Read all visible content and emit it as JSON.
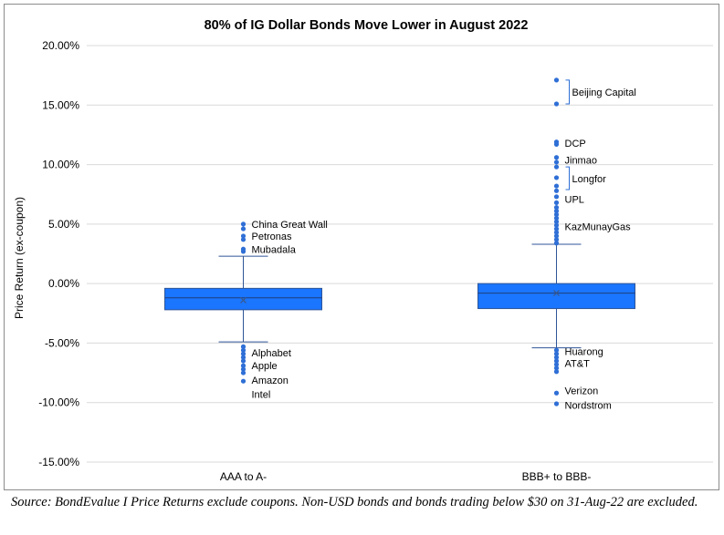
{
  "chart_data": {
    "type": "box",
    "title": "80% of IG Dollar Bonds Move Lower in August 2022",
    "ylabel": "Price Return (ex-coupon)",
    "xlabel": "",
    "ylim": [
      -15,
      20
    ],
    "yticks": [
      "-15.00%",
      "-10.00%",
      "-5.00%",
      "0.00%",
      "5.00%",
      "10.00%",
      "15.00%",
      "20.00%"
    ],
    "ytick_values": [
      -15,
      -10,
      -5,
      0,
      5,
      10,
      15,
      20
    ],
    "grid": true,
    "box_color": "#1a75ff",
    "outlier_color": "#2f6fd6",
    "categories": [
      "AAA to A-",
      "BBB+ to BBB-"
    ],
    "boxes": [
      {
        "category": "AAA to A-",
        "q1": -2.2,
        "median": -1.2,
        "q3": -0.4,
        "mean": -1.4,
        "whisker_low": -4.9,
        "whisker_high": 2.3,
        "outliers": [
          5.0,
          4.6,
          4.0,
          3.7,
          2.9,
          2.7,
          -5.3,
          -5.6,
          -5.9,
          -6.2,
          -6.5,
          -6.9,
          -7.2,
          -7.5,
          -8.2
        ],
        "annotations": [
          {
            "label": "China Great Wall",
            "value": 5.0
          },
          {
            "label": "Petronas",
            "value": 4.0
          },
          {
            "label": "Mubadala",
            "value": 2.9
          },
          {
            "label": "Alphabet",
            "value": -5.8
          },
          {
            "label": "Apple",
            "value": -6.9
          },
          {
            "label": "Amazon",
            "value": -8.1
          },
          {
            "label": "Intel",
            "value": -9.3
          }
        ]
      },
      {
        "category": "BBB+ to BBB-",
        "q1": -2.1,
        "median": -0.8,
        "q3": 0.0,
        "mean": -0.8,
        "whisker_low": -5.4,
        "whisker_high": 3.3,
        "outliers": [
          17.1,
          15.1,
          11.9,
          11.7,
          10.6,
          10.2,
          9.8,
          8.9,
          8.2,
          7.8,
          7.3,
          6.8,
          6.4,
          6.1,
          5.8,
          5.5,
          5.2,
          4.9,
          4.6,
          4.3,
          4.0,
          3.7,
          3.4,
          -5.6,
          -5.9,
          -6.2,
          -6.5,
          -6.8,
          -7.1,
          -7.4,
          -9.2,
          -10.1
        ],
        "annotations": [
          {
            "label": "Beijing Capital",
            "value": 16.1,
            "bracket": [
              17.1,
              15.1
            ]
          },
          {
            "label": "DCP",
            "value": 11.8
          },
          {
            "label": "Jinmao",
            "value": 10.4
          },
          {
            "label": "Longfor",
            "value": 8.8,
            "bracket": [
              9.8,
              7.9
            ]
          },
          {
            "label": "UPL",
            "value": 7.1
          },
          {
            "label": "KazMunayGas",
            "value": 4.8
          },
          {
            "label": "Huarong",
            "value": -5.7
          },
          {
            "label": "AT&T",
            "value": -6.7
          },
          {
            "label": "Verizon",
            "value": -9.0
          },
          {
            "label": "Nordstrom",
            "value": -10.2
          }
        ]
      }
    ]
  },
  "source_note": "Source: BondEvalue I Price Returns exclude coupons. Non-USD bonds and bonds trading below $30 on 31-Aug-22 are excluded."
}
